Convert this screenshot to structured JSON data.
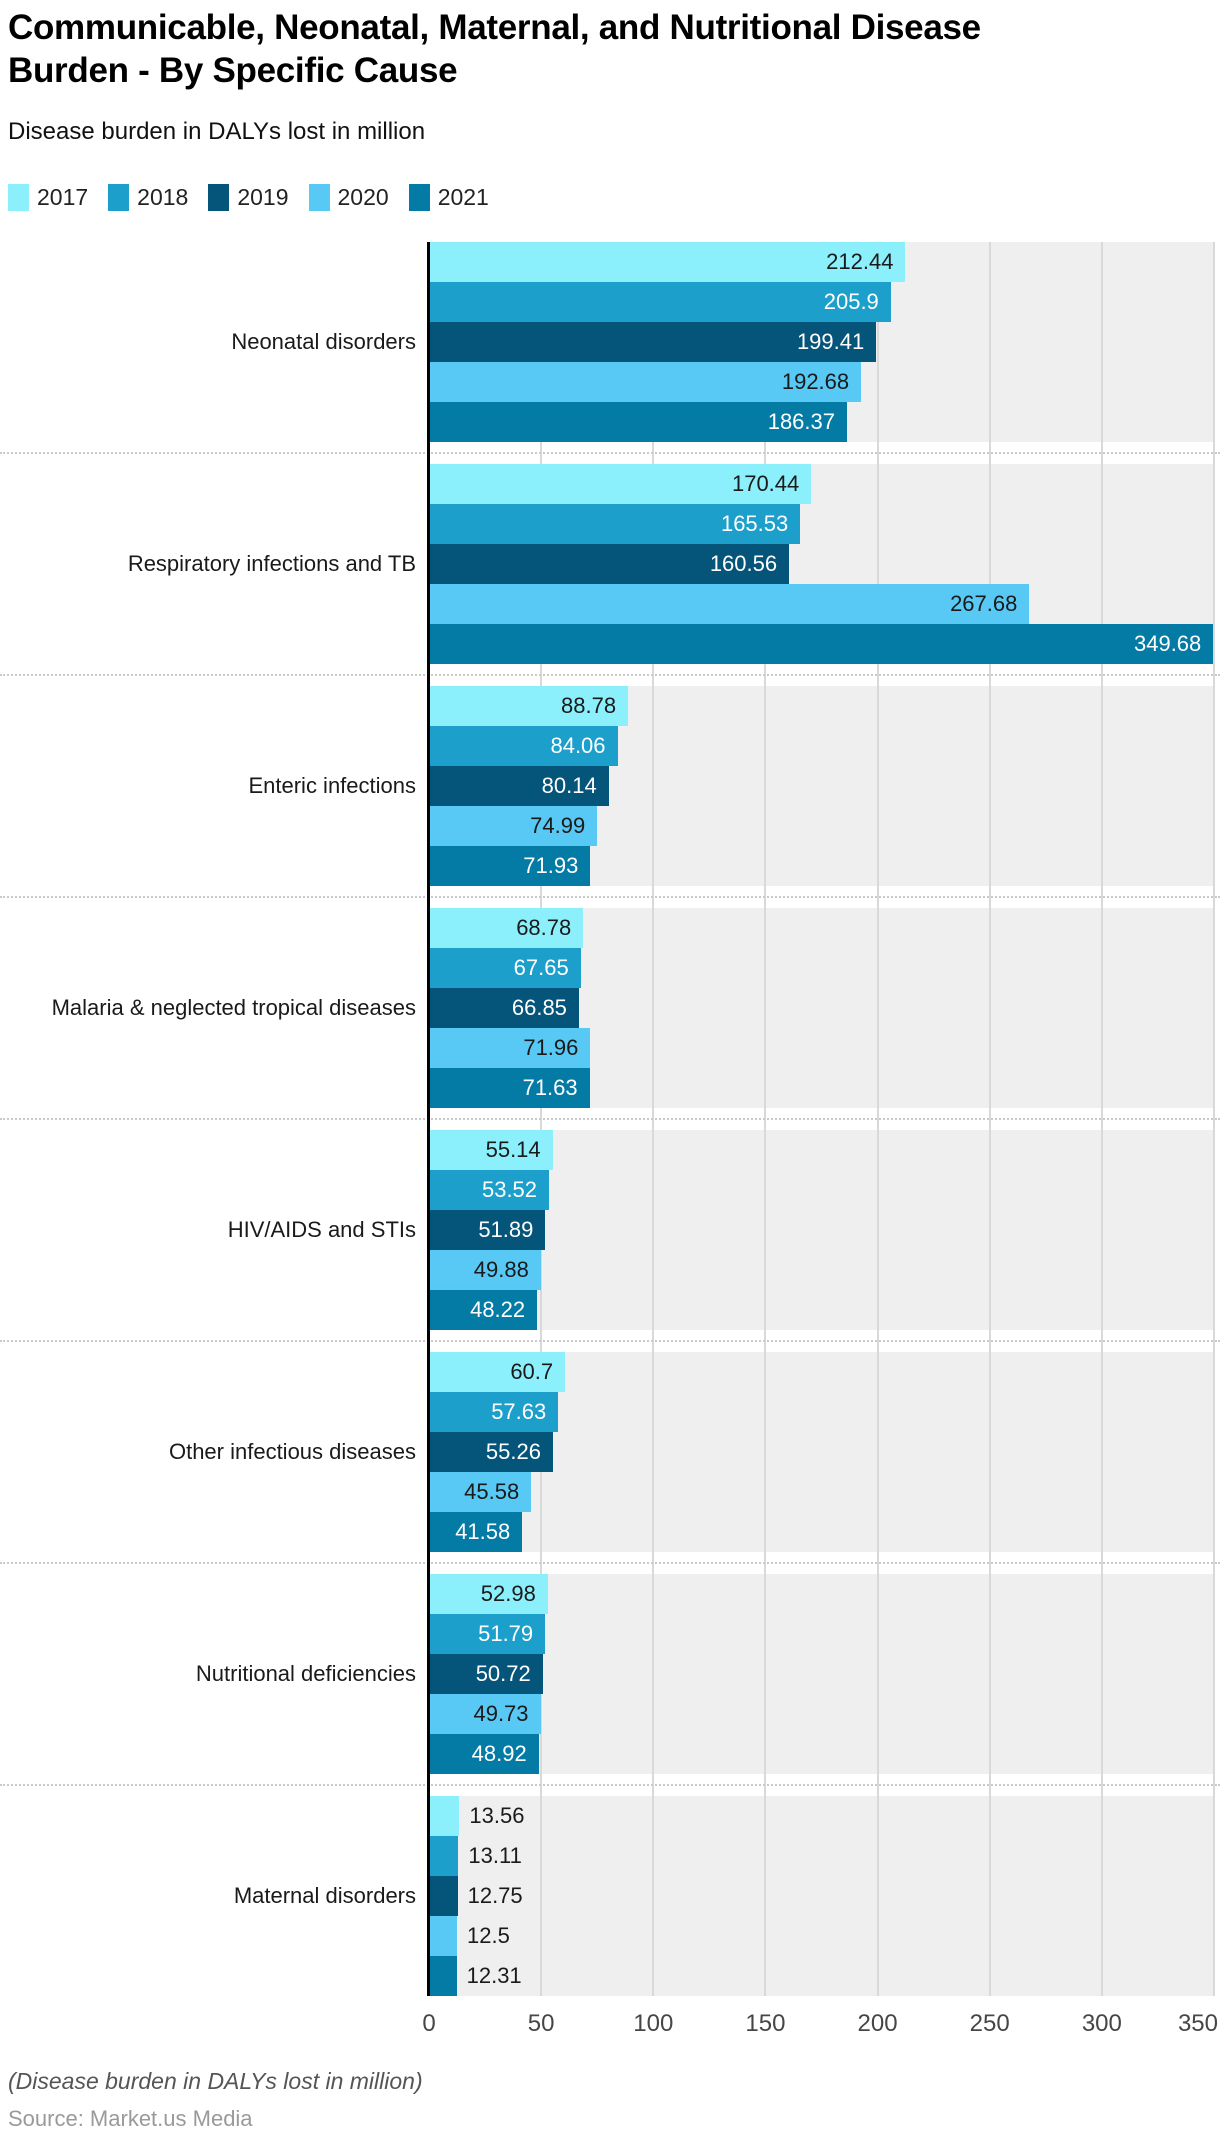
{
  "header": {
    "title": "Communicable, Neonatal, Maternal, and Nutritional Disease Burden - By Specific Cause",
    "subtitle": "Disease burden in DALYs lost in million"
  },
  "footer": {
    "note": "(Disease burden in DALYs lost in million)",
    "source": "Source: Market.us Media"
  },
  "colors": {
    "band_background": "#efefef",
    "gridline": "#d9d9d9",
    "axis": "#000000",
    "separator_dots": "#c9c9c9",
    "value_label_dark": "#1a1a1a",
    "value_label_light": "#ffffff"
  },
  "chart_data": {
    "type": "bar",
    "orientation": "horizontal",
    "title": "Communicable, Neonatal, Maternal, and Nutritional Disease Burden - By Specific Cause",
    "subtitle": "Disease burden in DALYs lost in million",
    "xlabel": "",
    "ylabel": "",
    "xlim": [
      0,
      350
    ],
    "grid": true,
    "legend_position": "top",
    "categories": [
      "Neonatal disorders",
      "Respiratory infections and TB",
      "Enteric infections",
      "Malaria & neglected tropical diseases",
      "HIV/AIDS and STIs",
      "Other infectious diseases",
      "Nutritional deficiencies",
      "Maternal disorders"
    ],
    "series": [
      {
        "name": "2017",
        "color": "#8bf0fb",
        "label_style": "dark",
        "values": [
          212.44,
          170.44,
          88.78,
          68.78,
          55.14,
          60.7,
          52.98,
          13.56
        ],
        "labels": [
          "212.44",
          "170.44",
          "88.78",
          "68.78",
          "55.14",
          "60.7",
          "52.98",
          "13.56"
        ]
      },
      {
        "name": "2018",
        "color": "#1c9fcb",
        "label_style": "light",
        "values": [
          205.9,
          165.53,
          84.06,
          67.65,
          53.52,
          57.63,
          51.79,
          13.11
        ],
        "labels": [
          "205.9",
          "165.53",
          "84.06",
          "67.65",
          "53.52",
          "57.63",
          "51.79",
          "13.11"
        ]
      },
      {
        "name": "2019",
        "color": "#05547a",
        "label_style": "light",
        "values": [
          199.41,
          160.56,
          80.14,
          66.85,
          51.89,
          55.26,
          50.72,
          12.75
        ],
        "labels": [
          "199.41",
          "160.56",
          "80.14",
          "66.85",
          "51.89",
          "55.26",
          "50.72",
          "12.75"
        ]
      },
      {
        "name": "2020",
        "color": "#58c8f5",
        "label_style": "dark",
        "values": [
          192.68,
          267.68,
          74.99,
          71.96,
          49.88,
          45.58,
          49.73,
          12.5
        ],
        "labels": [
          "192.68",
          "267.68",
          "74.99",
          "71.96",
          "49.88",
          "45.58",
          "49.73",
          "12.5"
        ]
      },
      {
        "name": "2021",
        "color": "#047ba4",
        "label_style": "light",
        "values": [
          186.37,
          349.68,
          71.93,
          71.63,
          48.22,
          41.58,
          48.92,
          12.31
        ],
        "labels": [
          "186.37",
          "349.68",
          "71.93",
          "71.63",
          "48.22",
          "41.58",
          "48.92",
          "12.31"
        ]
      }
    ],
    "xticks": [
      0,
      50,
      100,
      150,
      200,
      250,
      300,
      350
    ],
    "tick_labels": [
      "0",
      "50",
      "100",
      "150",
      "200",
      "250",
      "300",
      "350"
    ]
  }
}
